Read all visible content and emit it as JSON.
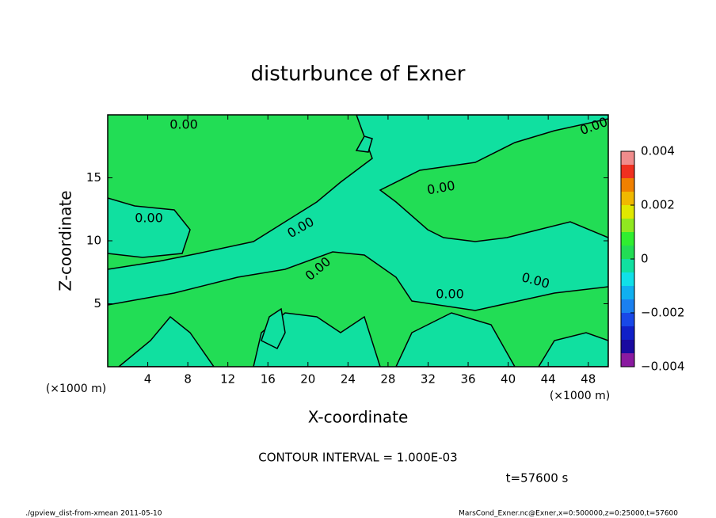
{
  "chart_data": {
    "type": "contour",
    "title": "disturbunce of Exner",
    "x_label": "X-coordinate",
    "y_label": "Z-coordinate",
    "x_unit": "(×1000 m)",
    "y_unit": "(×1000 m)",
    "xlim": [
      0,
      50
    ],
    "ylim": [
      0,
      20
    ],
    "xticks": [
      4,
      8,
      12,
      16,
      20,
      24,
      28,
      32,
      36,
      40,
      44,
      48
    ],
    "yticks": [
      5,
      10,
      15
    ],
    "colorbar": {
      "lim": [
        -0.004,
        0.004
      ],
      "ticks": [
        {
          "value": 0.004,
          "label": "0.004"
        },
        {
          "value": 0.002,
          "label": "0.002"
        },
        0,
        {
          "value": -0.002,
          "label": "−0.002"
        },
        {
          "value": -0.004,
          "label": "−0.004"
        }
      ],
      "levels": [
        -0.004,
        -0.0035,
        -0.003,
        -0.0025,
        -0.002,
        -0.0015,
        -0.001,
        -0.0005,
        0,
        0.0005,
        0.001,
        0.0015,
        0.002,
        0.0025,
        0.003,
        0.0035,
        0.004
      ],
      "colors": [
        "#8a1aa0",
        "#1a0aa0",
        "#1020c8",
        "#1848e8",
        "#1a80f0",
        "#10b0f0",
        "#10e0e8",
        "#10e0a0",
        "#22dd55",
        "#30ee30",
        "#90e820",
        "#e0e800",
        "#f0b800",
        "#f08000",
        "#f03020",
        "#f08c8c"
      ]
    },
    "contour_labels": [
      "0.00",
      "0.00",
      "0.00",
      "0.00",
      "0.00",
      "0.00",
      "0.00",
      "0.00"
    ],
    "contour_interval_text": "CONTOUR INTERVAL = 1.000E-03",
    "time_text": "t=57600 s",
    "footer_left": "./gpview_dist-from-xmean  2011-05-10",
    "footer_right": "MarsCond_Exner.nc@Exner,x=0:500000,z=0:25000,t=57600"
  }
}
